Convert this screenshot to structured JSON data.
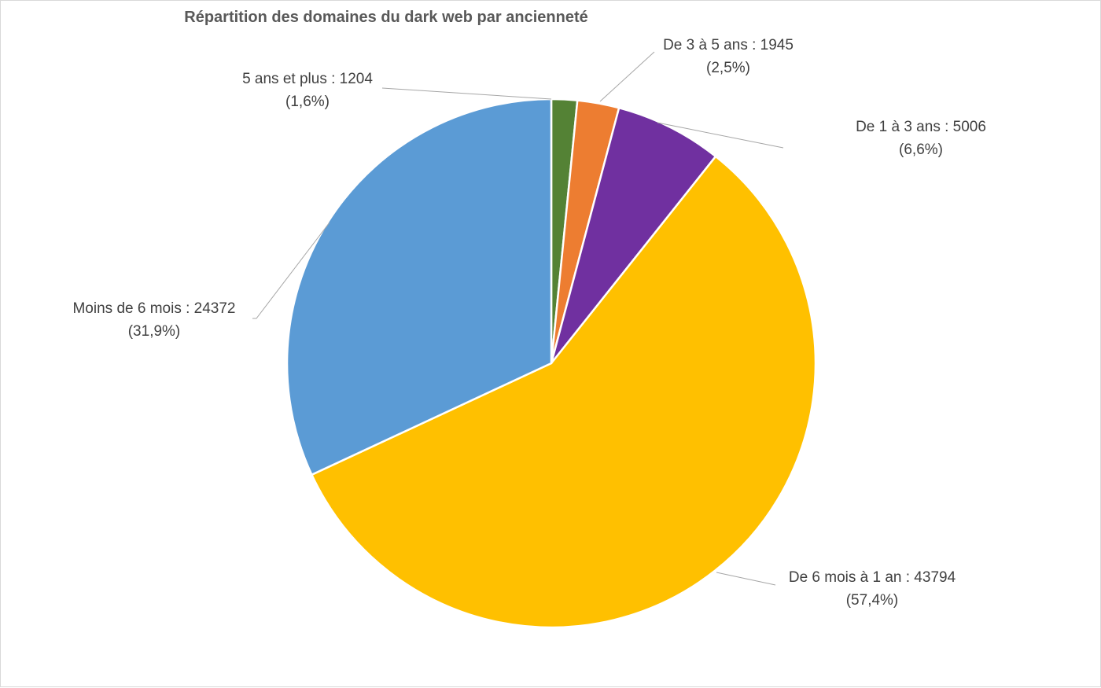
{
  "chart_data": {
    "type": "pie",
    "title": "Répartition des domaines du dark web par ancienneté",
    "slices": [
      {
        "label": "5 ans et plus : 1204",
        "percent_label": "(1,6%)",
        "name": "5 ans et plus",
        "value": 1204,
        "color": "#548235"
      },
      {
        "label": "De 3 à 5 ans : 1945",
        "percent_label": "(2,5%)",
        "name": "De 3 à 5 ans",
        "value": 1945,
        "color": "#ED7D31"
      },
      {
        "label": "De 1 à 3 ans : 5006",
        "percent_label": "(6,6%)",
        "name": "De 1 à 3 ans",
        "value": 5006,
        "color": "#7030A0"
      },
      {
        "label": "De 6 mois à 1 an : 43794",
        "percent_label": "(57,4%)",
        "name": "De 6 mois à 1 an",
        "value": 43794,
        "color": "#FFC000"
      },
      {
        "label": "Moins de 6 mois : 24372",
        "percent_label": "(31,9%)",
        "name": "Moins de 6 mois",
        "value": 24372,
        "color": "#5B9BD5"
      }
    ]
  }
}
